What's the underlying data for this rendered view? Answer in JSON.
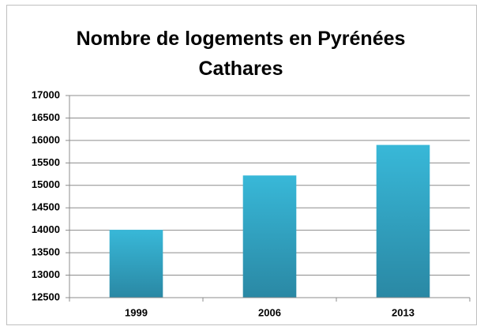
{
  "chart_data": {
    "type": "bar",
    "title": "Nombre de logements en Pyrénées Cathares",
    "categories": [
      "1999",
      "2006",
      "2013"
    ],
    "values": [
      14010,
      15220,
      15900
    ],
    "color": "#35b0d0",
    "ylim": [
      12500,
      17000
    ],
    "yticks": [
      12500,
      13000,
      13500,
      14000,
      14500,
      15000,
      15500,
      16000,
      16500,
      17000
    ],
    "grid": true
  }
}
